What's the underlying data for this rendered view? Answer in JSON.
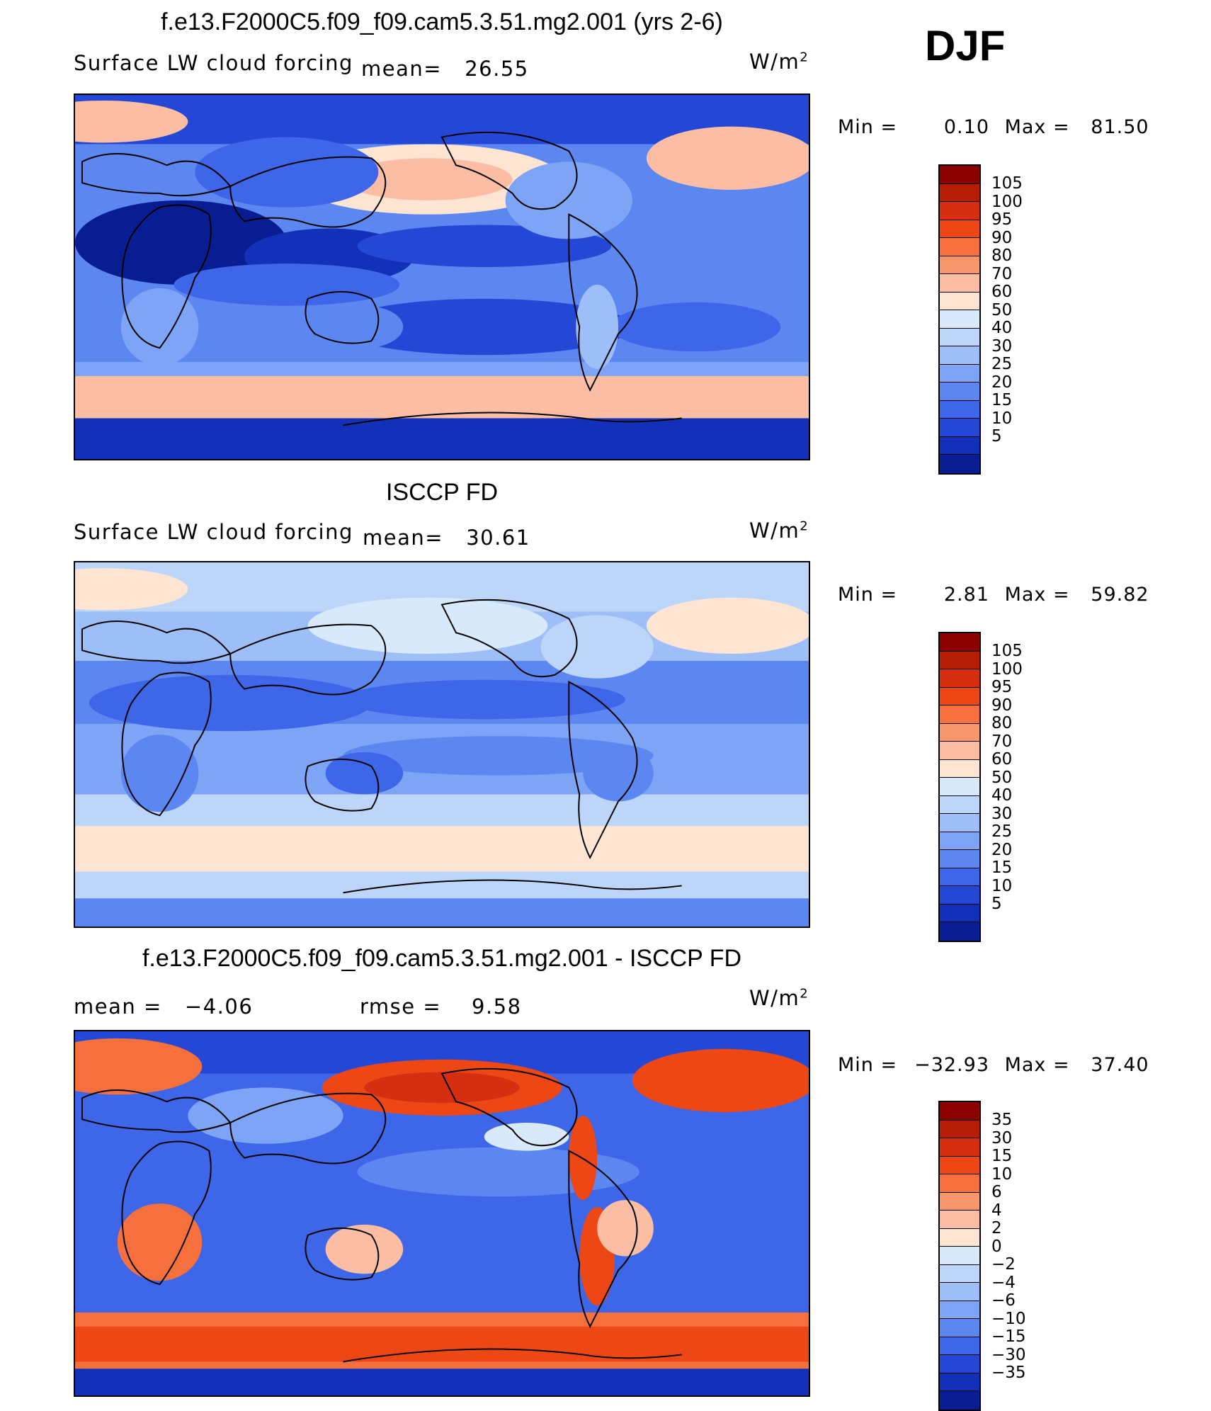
{
  "season": "DJF",
  "panels": [
    {
      "title": "f.e13.F2000C5.f09_f09.cam5.3.51.mg2.001 (yrs 2-6)",
      "variable": "Surface LW cloud forcing",
      "stat1": "mean=   26.55",
      "stat2": "",
      "units_base": "W/m",
      "units_exp": "2",
      "min_label": "Min =",
      "min_value": "0.10",
      "max_label": "Max =",
      "max_value": "81.50",
      "colorbar": {
        "colors": [
          "#8a0000",
          "#b51d05",
          "#d52e10",
          "#ee4716",
          "#f5703d",
          "#f7956b",
          "#fbbea4",
          "#fde4d3",
          "#d7e9fb",
          "#bcd5f8",
          "#9ebef8",
          "#7ea4f5",
          "#5d87f0",
          "#3d66e8",
          "#2547d6",
          "#1330b8",
          "#081d92"
        ],
        "labels": [
          "105",
          "100",
          "95",
          "90",
          "80",
          "70",
          "60",
          "50",
          "40",
          "30",
          "25",
          "20",
          "15",
          "10",
          "5"
        ]
      }
    },
    {
      "title": "ISCCP FD",
      "variable": "Surface LW cloud forcing",
      "stat1": "mean=   30.61",
      "stat2": "",
      "units_base": "W/m",
      "units_exp": "2",
      "min_label": "Min =",
      "min_value": "2.81",
      "max_label": "Max =",
      "max_value": "59.82",
      "colorbar": {
        "colors": [
          "#8a0000",
          "#b51d05",
          "#d52e10",
          "#ee4716",
          "#f5703d",
          "#f7956b",
          "#fbbea4",
          "#fde4d3",
          "#d7e9fb",
          "#bcd5f8",
          "#9ebef8",
          "#7ea4f5",
          "#5d87f0",
          "#3d66e8",
          "#2547d6",
          "#1330b8",
          "#081d92"
        ],
        "labels": [
          "105",
          "100",
          "95",
          "90",
          "80",
          "70",
          "60",
          "50",
          "40",
          "30",
          "25",
          "20",
          "15",
          "10",
          "5"
        ]
      }
    },
    {
      "title": "f.e13.F2000C5.f09_f09.cam5.3.51.mg2.001 - ISCCP FD",
      "variable": "",
      "stat1": "mean =   −4.06",
      "stat2": "rmse =    9.58",
      "units_base": "W/m",
      "units_exp": "2",
      "min_label": "Min =",
      "min_value": "−32.93",
      "max_label": "Max =",
      "max_value": "37.40",
      "colorbar": {
        "colors": [
          "#8a0000",
          "#b51d05",
          "#d52e10",
          "#ee4716",
          "#f5703d",
          "#f7956b",
          "#fbbea4",
          "#fde4d3",
          "#d7e9fb",
          "#bcd5f8",
          "#9ebef8",
          "#7ea4f5",
          "#5d87f0",
          "#3d66e8",
          "#2547d6",
          "#1330b8",
          "#081d92"
        ],
        "labels": [
          "35",
          "30",
          "15",
          "10",
          "6",
          "4",
          "2",
          "0",
          "−2",
          "−4",
          "−6",
          "−10",
          "−15",
          "−30",
          "−35"
        ]
      }
    }
  ]
}
